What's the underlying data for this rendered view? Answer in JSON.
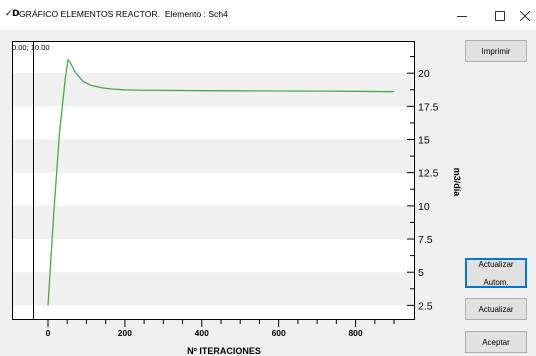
{
  "window": {
    "app_icon_text": "✓D",
    "title": "GRÁFICO ELEMENTOS REACTOR.",
    "element_label": "Elemento :",
    "element_value": "Sch4",
    "minimize_icon": "minimize-icon",
    "maximize_icon": "maximize-icon",
    "close_icon": "close-icon"
  },
  "buttons": {
    "print": "Imprimir",
    "auto_update_line1": "Actualizar",
    "auto_update_line2": "Autom.",
    "update": "Actualizar",
    "accept": "Aceptar"
  },
  "colors": {
    "series": "#4aa84a",
    "stripe": "#f0f0f0",
    "focus": "#0078d7"
  },
  "chart_data": {
    "type": "line",
    "corner_readout": "0.00; 10.00",
    "xlabel": "Nº ITERACIONES",
    "ylabel": "m3/día",
    "xlim": [
      0,
      950
    ],
    "ylim": [
      2.0,
      22.5
    ],
    "x_ticks": [
      "0",
      "200",
      "400",
      "600",
      "800"
    ],
    "x_tick_values": [
      0,
      200,
      400,
      600,
      800
    ],
    "y_ticks": [
      "2.5",
      "5",
      "7.5",
      "10",
      "12.5",
      "15",
      "17.5",
      "20"
    ],
    "y_tick_values": [
      2.5,
      5,
      7.5,
      10,
      12.5,
      15,
      17.5,
      20
    ],
    "grid": false,
    "series": [
      {
        "x": [
          0,
          15,
          30,
          45,
          52,
          58,
          70,
          90,
          110,
          140,
          170,
          200,
          250,
          300,
          400,
          500,
          600,
          700,
          800,
          900
        ],
        "y": [
          2.5,
          9.5,
          15.5,
          19.6,
          21.0,
          20.8,
          20.1,
          19.4,
          19.1,
          18.9,
          18.8,
          18.75,
          18.7,
          18.7,
          18.68,
          18.67,
          18.66,
          18.65,
          18.63,
          18.6
        ]
      }
    ]
  }
}
